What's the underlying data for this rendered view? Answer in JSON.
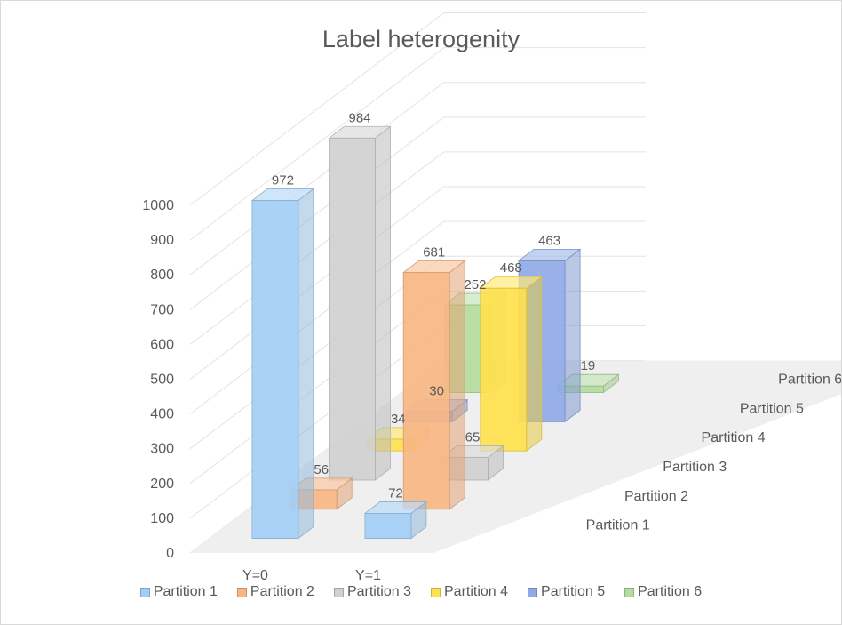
{
  "chart_data": {
    "type": "bar",
    "subtype": "3d-column",
    "title": "Label heterogenity",
    "categories": [
      "Y=0",
      "Y=1"
    ],
    "series": [
      {
        "name": "Partition 1",
        "values": [
          972,
          72
        ],
        "color": "#a3cdf5"
      },
      {
        "name": "Partition 2",
        "values": [
          56,
          681
        ],
        "color": "#f9b683"
      },
      {
        "name": "Partition 3",
        "values": [
          984,
          65
        ],
        "color": "#d0d0d0"
      },
      {
        "name": "Partition 4",
        "values": [
          34,
          468
        ],
        "color": "#ffe14d"
      },
      {
        "name": "Partition 5",
        "values": [
          30,
          463
        ],
        "color": "#8faae6"
      },
      {
        "name": "Partition 6",
        "values": [
          252,
          19
        ],
        "color": "#b3dca0"
      }
    ],
    "ylim": [
      0,
      1000
    ],
    "yticks": [
      0,
      100,
      200,
      300,
      400,
      500,
      600,
      700,
      800,
      900,
      1000
    ],
    "grid": true,
    "legend": "bottom"
  }
}
